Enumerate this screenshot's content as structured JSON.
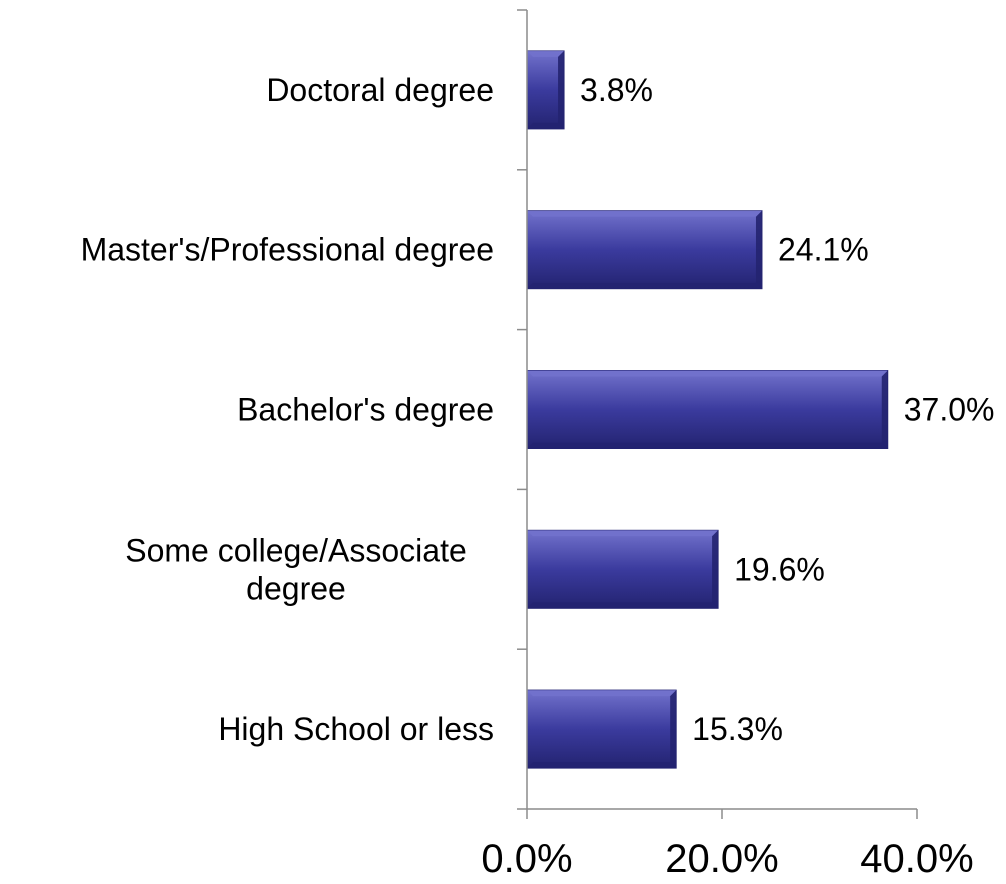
{
  "chart_data": {
    "type": "bar",
    "orientation": "horizontal",
    "title": "",
    "xlabel": "",
    "ylabel": "",
    "categories": [
      "High School or less",
      "Some college/Associate degree",
      "Bachelor's degree",
      "Master's/Professional degree",
      "Doctoral degree"
    ],
    "category_lines": [
      [
        "High School or less"
      ],
      [
        "Some college/Associate",
        "degree"
      ],
      [
        "Bachelor's degree"
      ],
      [
        "Master's/Professional degree"
      ],
      [
        "Doctoral degree"
      ]
    ],
    "values": [
      15.3,
      19.6,
      37.0,
      24.1,
      3.8
    ],
    "data_labels": [
      "15.3%",
      "19.6%",
      "37.0%",
      "24.1%",
      "3.8%"
    ],
    "xlim": [
      0,
      40
    ],
    "x_ticks": [
      0,
      20,
      40
    ],
    "x_tick_labels": [
      "0.0%",
      "20.0%",
      "40.0%"
    ],
    "grid": false,
    "legend": "none",
    "colors": {
      "bar_fill": "#3b3b9e",
      "bar_light": "#7272cc",
      "bar_dark": "#232370",
      "axis": "#8c8c8c"
    }
  }
}
